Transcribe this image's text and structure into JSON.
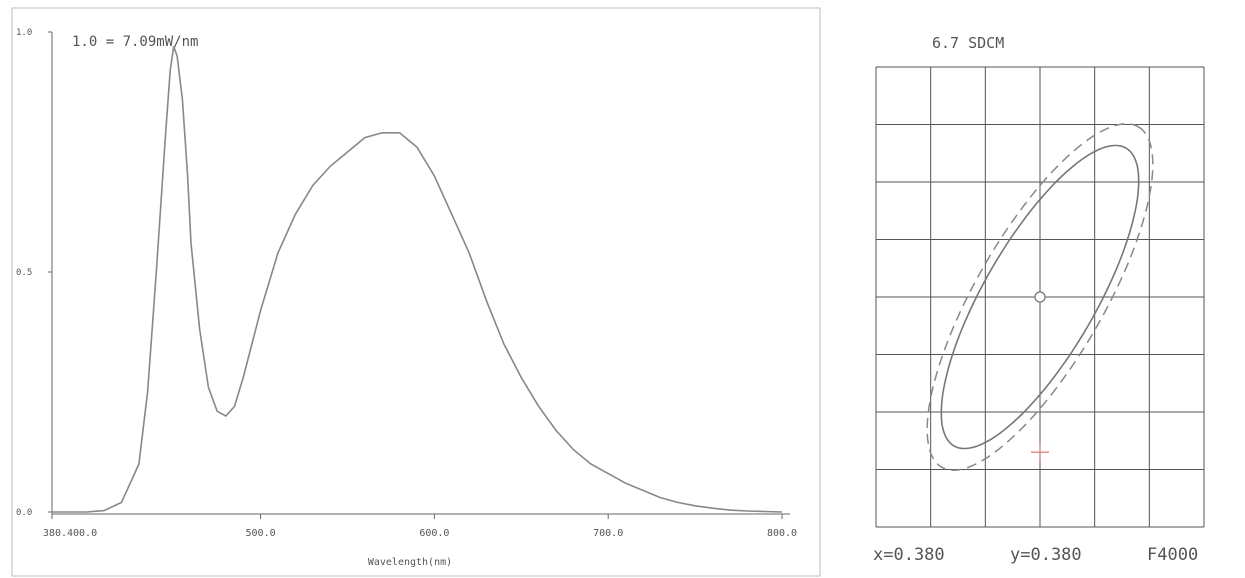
{
  "chart_data": [
    {
      "type": "line",
      "title": "1.0 = 7.09mW/nm",
      "xlabel": "Wavelength(nm)",
      "ylabel": "",
      "xlim": [
        380,
        800
      ],
      "ylim": [
        0,
        1
      ],
      "x_ticks": [
        {
          "value": 380,
          "label": "380.400.0"
        },
        {
          "value": 500,
          "label": "500.0"
        },
        {
          "value": 600,
          "label": "600.0"
        },
        {
          "value": 700,
          "label": "700.0"
        },
        {
          "value": 800,
          "label": "800.0"
        }
      ],
      "y_ticks": [
        {
          "value": 0,
          "label": "0.0"
        },
        {
          "value": 0.5,
          "label": "0.5"
        },
        {
          "value": 1,
          "label": "1.0"
        }
      ],
      "grid": false,
      "series": [
        {
          "x": [
            380,
            400,
            410,
            420,
            430,
            435,
            440,
            445,
            448,
            450,
            452,
            455,
            458,
            460,
            465,
            470,
            475,
            480,
            485,
            490,
            495,
            500,
            510,
            520,
            530,
            540,
            550,
            560,
            570,
            580,
            590,
            600,
            610,
            620,
            630,
            640,
            650,
            660,
            670,
            680,
            690,
            700,
            710,
            720,
            730,
            740,
            750,
            760,
            770,
            780,
            790,
            800
          ],
          "y": [
            0,
            0,
            0.003,
            0.02,
            0.1,
            0.25,
            0.5,
            0.77,
            0.92,
            0.97,
            0.95,
            0.86,
            0.7,
            0.56,
            0.38,
            0.26,
            0.21,
            0.2,
            0.22,
            0.28,
            0.35,
            0.42,
            0.54,
            0.62,
            0.68,
            0.72,
            0.75,
            0.78,
            0.79,
            0.79,
            0.76,
            0.7,
            0.62,
            0.54,
            0.44,
            0.35,
            0.28,
            0.22,
            0.17,
            0.13,
            0.1,
            0.08,
            0.06,
            0.045,
            0.03,
            0.02,
            0.013,
            0.008,
            0.004,
            0.002,
            0.001,
            0
          ]
        }
      ]
    },
    {
      "type": "scatter",
      "title": "6.7 SDCM",
      "grid": true,
      "xlim": [
        0.36,
        0.4
      ],
      "ylim": [
        0.36,
        0.4
      ],
      "center_x": 0.38,
      "center_y": 0.38,
      "ellipse_tilt_deg": 60,
      "inner_ellipse_steps": 7,
      "outer_ellipse_steps": 8,
      "measured_point": {
        "x": 0.38,
        "y": 0.3665
      },
      "footer": {
        "x_text": "x=0.380",
        "y_text": "y=0.380",
        "standard": "F4000"
      },
      "colors": {
        "ellipse": "#777777",
        "grid": "#555555",
        "point": "#d98f8f"
      }
    }
  ]
}
